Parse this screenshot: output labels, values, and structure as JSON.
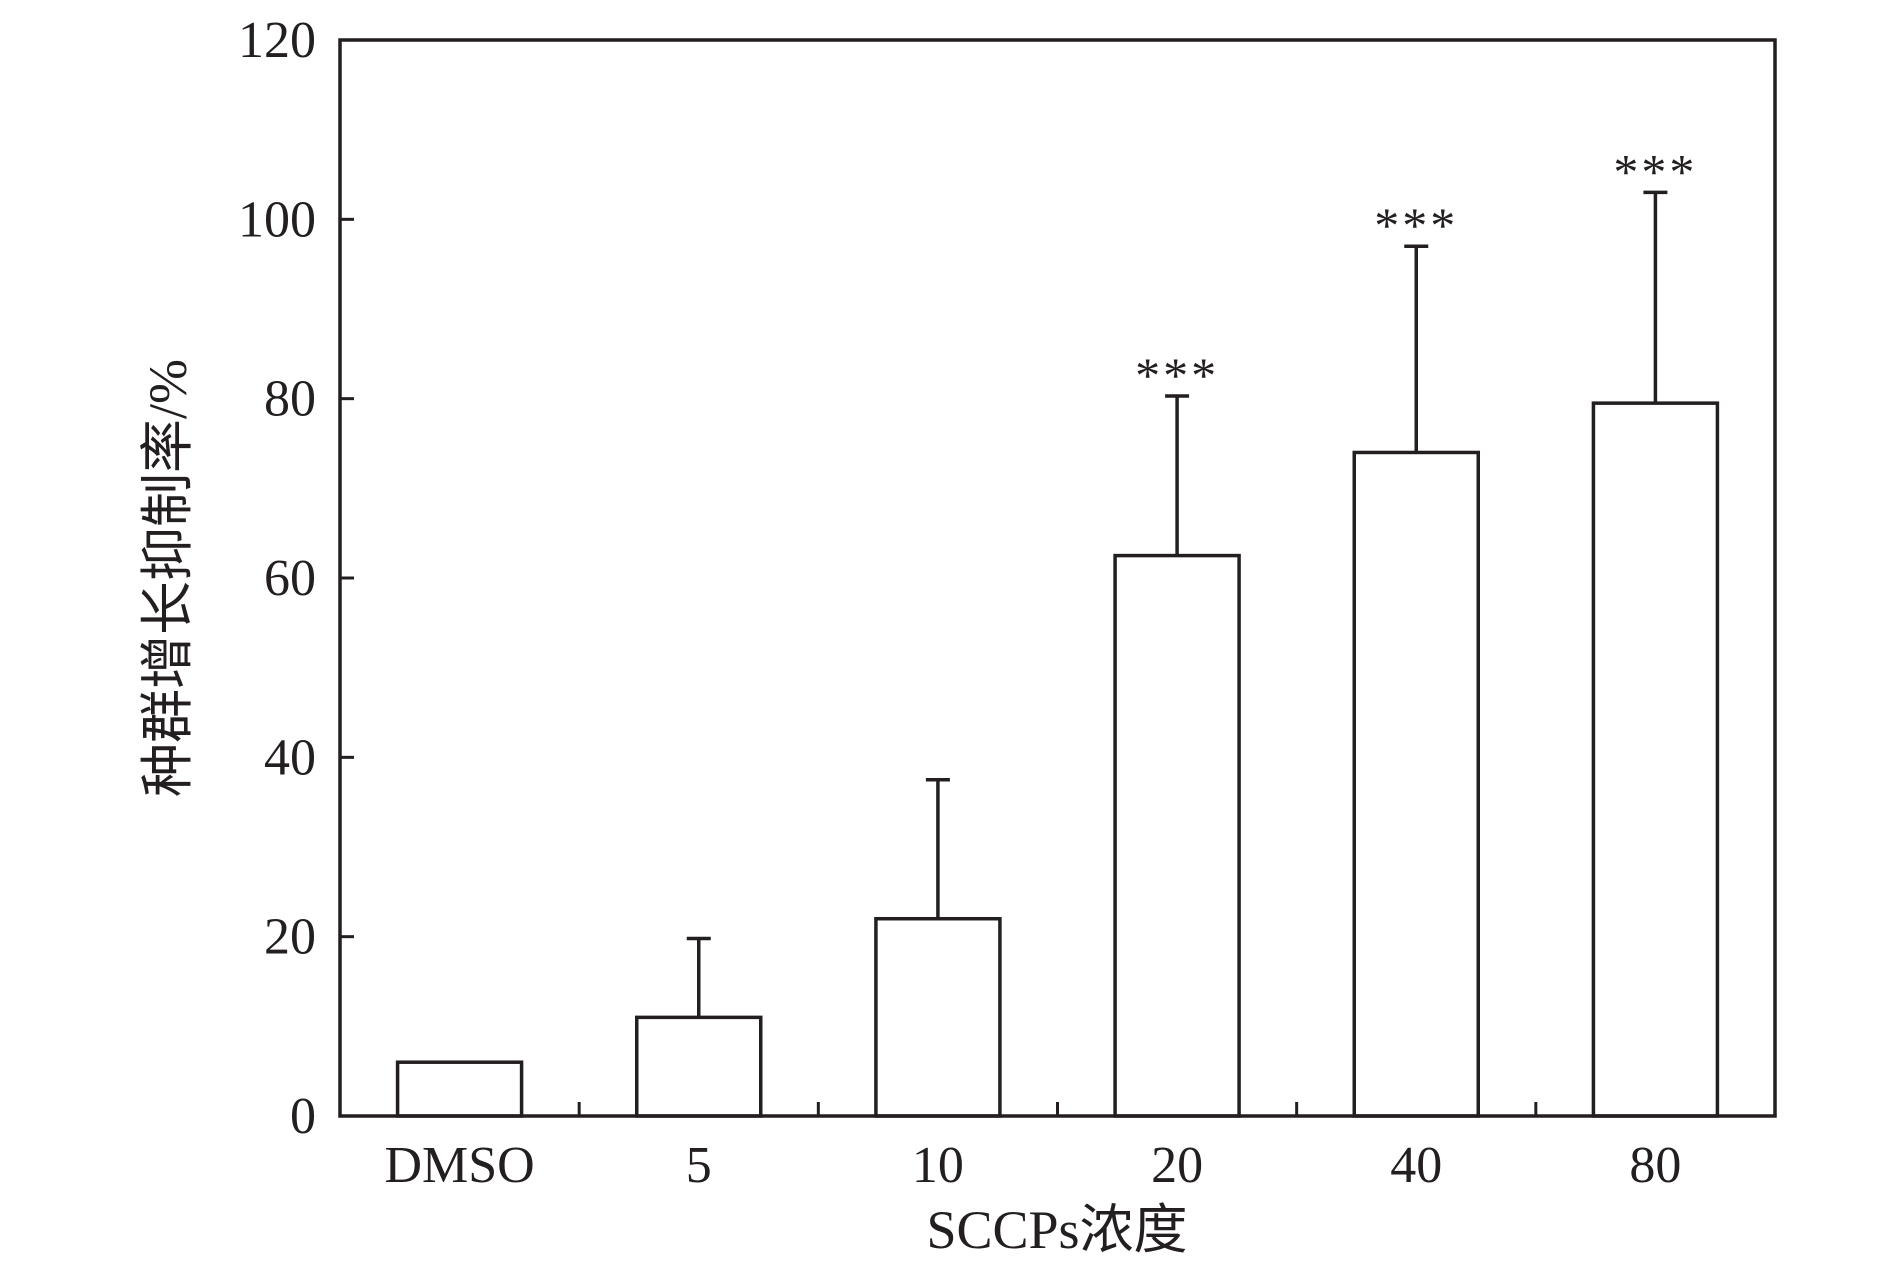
{
  "chart_data": {
    "type": "bar",
    "categories": [
      "DMSO",
      "5",
      "10",
      "20",
      "40",
      "80"
    ],
    "values": [
      6,
      11,
      22,
      62.5,
      74,
      79.5
    ],
    "error_upper": [
      6,
      19.8,
      37.5,
      80.3,
      97,
      103
    ],
    "significance": [
      "",
      "",
      "",
      "***",
      "***",
      "***"
    ],
    "xlabel": "SCCPs浓度",
    "ylabel": "种群增长抑制率/%",
    "ylim": [
      0,
      120
    ],
    "yticks": [
      0,
      20,
      40,
      60,
      80,
      100,
      120
    ],
    "bar_fill": "#ffffff",
    "stroke_color": "#231f20",
    "grid": false,
    "legend": "none"
  }
}
